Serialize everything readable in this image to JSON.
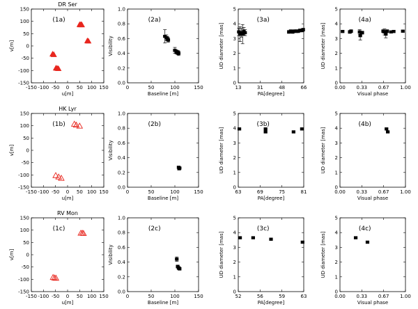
{
  "chart_data": [
    {
      "id": "1a",
      "type": "scatter",
      "panel_label": "(1a)",
      "title": "DR Ser",
      "xlabel": "u[m]",
      "ylabel": "v[m]",
      "xlim": [
        -150,
        150
      ],
      "ylim": [
        -150,
        150
      ],
      "xticks": [
        "-150",
        "-100",
        "-50",
        "0",
        "50",
        "100",
        "150"
      ],
      "yticks": [
        "-150",
        "-100",
        "-50",
        "0",
        "50",
        "100",
        "150"
      ],
      "marker": "filled-triangle",
      "color": "#e8261e",
      "points": [
        [
          50,
          87
        ],
        [
          56,
          87
        ],
        [
          53,
          86
        ],
        [
          59,
          86
        ],
        [
          82,
          21
        ],
        [
          86,
          20
        ],
        [
          -62,
          -33
        ],
        [
          -57,
          -35
        ],
        [
          -48,
          -90
        ],
        [
          -43,
          -91
        ],
        [
          -38,
          -92
        ]
      ]
    },
    {
      "id": "2a",
      "type": "scatter",
      "panel_label": "(2a)",
      "title": "",
      "xlabel": "Baseline [m]",
      "ylabel": "Visibility",
      "xlim": [
        0,
        150
      ],
      "ylim": [
        0,
        1.0
      ],
      "xticks": [
        "0",
        "50",
        "100",
        "150"
      ],
      "yticks": [
        "0.0",
        "0.2",
        "0.4",
        "0.6",
        "0.8",
        "1.0"
      ],
      "marker": "filled-square",
      "color": "#000000",
      "points": [
        [
          79,
          0.63,
          0.09
        ],
        [
          82,
          0.61,
          0.04
        ],
        [
          84,
          0.6,
          0.03
        ],
        [
          86,
          0.58,
          0.03
        ],
        [
          100,
          0.44,
          0.04
        ],
        [
          103,
          0.42,
          0.03
        ],
        [
          106,
          0.41,
          0.03
        ],
        [
          108,
          0.4,
          0.03
        ]
      ]
    },
    {
      "id": "3a",
      "type": "scatter",
      "panel_label": "(3a)",
      "title": "",
      "xlabel": "PA[degree]",
      "ylabel": "UD diameter [mas]",
      "xlim": [
        13,
        66
      ],
      "ylim": [
        0,
        5
      ],
      "xticks": [
        "13",
        "31",
        "48",
        "66"
      ],
      "yticks": [
        "0",
        "1",
        "2",
        "3",
        "4",
        "5"
      ],
      "marker": "filled-square",
      "color": "#000000",
      "points": [
        [
          13.5,
          3.45,
          0.25
        ],
        [
          14.5,
          3.3,
          0.5
        ],
        [
          15.5,
          3.4,
          0.3
        ],
        [
          16.5,
          3.3,
          0.65
        ],
        [
          17.5,
          3.5,
          0.25
        ],
        [
          18.5,
          3.4,
          0.2
        ],
        [
          54,
          3.45,
          0.1
        ],
        [
          55.5,
          3.5,
          0.1
        ],
        [
          57,
          3.45,
          0.1
        ],
        [
          58.5,
          3.5,
          0.1
        ],
        [
          60,
          3.5,
          0.1
        ],
        [
          61.5,
          3.5,
          0.1
        ],
        [
          63,
          3.55,
          0.1
        ],
        [
          64.5,
          3.55,
          0.1
        ],
        [
          65.5,
          3.6,
          0.1
        ]
      ]
    },
    {
      "id": "4a",
      "type": "scatter",
      "panel_label": "(4a)",
      "title": "",
      "xlabel": "Visual phase",
      "ylabel": "UD diameter [mas]",
      "xlim": [
        0,
        1
      ],
      "ylim": [
        0,
        5
      ],
      "xticks": [
        "0.00",
        "0.33",
        "0.67",
        "1.00"
      ],
      "yticks": [
        "0",
        "1",
        "2",
        "3",
        "4",
        "5"
      ],
      "marker": "filled-square",
      "color": "#000000",
      "points": [
        [
          0.04,
          3.48,
          0.06
        ],
        [
          0.15,
          3.45,
          0.1
        ],
        [
          0.17,
          3.5,
          0.1
        ],
        [
          0.3,
          3.45,
          0.15
        ],
        [
          0.31,
          3.2,
          0.3
        ],
        [
          0.34,
          3.4,
          0.1
        ],
        [
          0.66,
          3.5,
          0.1
        ],
        [
          0.68,
          3.45,
          0.2
        ],
        [
          0.7,
          3.3,
          0.25
        ],
        [
          0.72,
          3.5,
          0.1
        ],
        [
          0.78,
          3.45,
          0.06
        ],
        [
          0.82,
          3.48,
          0.06
        ],
        [
          0.96,
          3.5,
          0.06
        ]
      ]
    },
    {
      "id": "1b",
      "type": "scatter",
      "panel_label": "(1b)",
      "title": "HK Lyr",
      "xlabel": "u[m]",
      "ylabel": "v[m]",
      "xlim": [
        -150,
        150
      ],
      "ylim": [
        -150,
        150
      ],
      "xticks": [
        "-150",
        "-100",
        "-50",
        "0",
        "50",
        "100",
        "150"
      ],
      "yticks": [
        "-150",
        "-100",
        "-50",
        "0",
        "50",
        "100",
        "150"
      ],
      "marker": "open-triangle",
      "color": "#e8261e",
      "points": [
        [
          28,
          107
        ],
        [
          36,
          103
        ],
        [
          50,
          99
        ],
        [
          -49,
          -102
        ],
        [
          -37,
          -108
        ],
        [
          -26,
          -113
        ]
      ]
    },
    {
      "id": "2b",
      "type": "scatter",
      "panel_label": "(2b)",
      "title": "",
      "xlabel": "Baseline [m]",
      "ylabel": "Visibility",
      "xlim": [
        0,
        150
      ],
      "ylim": [
        0,
        1.0
      ],
      "xticks": [
        "0",
        "50",
        "100",
        "150"
      ],
      "yticks": [
        "0.0",
        "0.2",
        "0.4",
        "0.6",
        "0.8",
        "1.0"
      ],
      "marker": "filled-square",
      "color": "#000000",
      "points": [
        [
          108,
          0.27,
          0.01
        ],
        [
          110,
          0.26,
          0.01
        ],
        [
          109,
          0.25,
          0.01
        ]
      ]
    },
    {
      "id": "3b",
      "type": "scatter",
      "panel_label": "(3b)",
      "title": "",
      "xlabel": "PA[degree]",
      "ylabel": "UD diameter [mas]",
      "xlim": [
        63,
        81
      ],
      "ylim": [
        0,
        5
      ],
      "xticks": [
        "63",
        "69",
        "75",
        "81"
      ],
      "yticks": [
        "0",
        "1",
        "2",
        "3",
        "4",
        "5"
      ],
      "marker": "filled-square",
      "color": "#000000",
      "points": [
        [
          63.3,
          3.95,
          0.05
        ],
        [
          70.5,
          3.95,
          0.05
        ],
        [
          70.5,
          3.75,
          0.05
        ],
        [
          78.2,
          3.75,
          0.05
        ],
        [
          80.5,
          3.95,
          0.05
        ]
      ]
    },
    {
      "id": "4b",
      "type": "scatter",
      "panel_label": "(4b)",
      "title": "",
      "xlabel": "Visual phase",
      "ylabel": "UD diameter [mas]",
      "xlim": [
        0,
        1
      ],
      "ylim": [
        0,
        5
      ],
      "xticks": [
        "0.00",
        "0.33",
        "0.67",
        "1.00"
      ],
      "yticks": [
        "0",
        "1",
        "2",
        "3",
        "4",
        "5"
      ],
      "marker": "filled-square",
      "color": "#000000",
      "points": [
        [
          0.71,
          3.95,
          0.05
        ],
        [
          0.73,
          3.75,
          0.05
        ]
      ]
    },
    {
      "id": "1c",
      "type": "scatter",
      "panel_label": "(1c)",
      "title": "RV Mon",
      "xlabel": "u[m]",
      "ylabel": "v[m]",
      "xlim": [
        -150,
        150
      ],
      "ylim": [
        -150,
        150
      ],
      "xticks": [
        "-150",
        "-100",
        "-50",
        "0",
        "50",
        "100",
        "150"
      ],
      "yticks": [
        "-150",
        "-100",
        "-50",
        "0",
        "50",
        "100",
        "150"
      ],
      "marker": "open-triangle",
      "color": "#e8261e",
      "points": [
        [
          55,
          88
        ],
        [
          61,
          88
        ],
        [
          66,
          87
        ],
        [
          -60,
          -92
        ],
        [
          -54,
          -94
        ],
        [
          -48,
          -95
        ]
      ]
    },
    {
      "id": "2c",
      "type": "scatter",
      "panel_label": "(2c)",
      "title": "",
      "xlabel": "Baseline [m]",
      "ylabel": "Visibility",
      "xlim": [
        0,
        150
      ],
      "ylim": [
        0,
        1.0
      ],
      "xticks": [
        "0",
        "50",
        "100",
        "150"
      ],
      "yticks": [
        "0.0",
        "0.2",
        "0.4",
        "0.6",
        "0.8",
        "1.0"
      ],
      "marker": "filled-square",
      "color": "#000000",
      "points": [
        [
          104,
          0.44,
          0.03
        ],
        [
          106,
          0.34,
          0.02
        ],
        [
          108,
          0.32,
          0.02
        ],
        [
          110,
          0.31,
          0.02
        ]
      ]
    },
    {
      "id": "3c",
      "type": "scatter",
      "panel_label": "(3c)",
      "title": "",
      "xlabel": "PA[degree]",
      "ylabel": "UD diameter [mas]",
      "xlim": [
        52,
        63
      ],
      "ylim": [
        0,
        5
      ],
      "xticks": [
        "52",
        "56",
        "59",
        "63"
      ],
      "yticks": [
        "0",
        "1",
        "2",
        "3",
        "4",
        "5"
      ],
      "marker": "filled-square",
      "color": "#000000",
      "points": [
        [
          52.3,
          3.65,
          0.05
        ],
        [
          54.5,
          3.65,
          0.05
        ],
        [
          57.5,
          3.55,
          0.05
        ],
        [
          62.8,
          3.35,
          0.08
        ]
      ]
    },
    {
      "id": "4c",
      "type": "scatter",
      "panel_label": "(4c)",
      "title": "",
      "xlabel": "Visual phase",
      "ylabel": "UD diameter [mas]",
      "xlim": [
        0,
        1
      ],
      "ylim": [
        0,
        5
      ],
      "xticks": [
        "0.00",
        "0.33",
        "0.67",
        "1.00"
      ],
      "yticks": [
        "0",
        "1",
        "2",
        "3",
        "4",
        "5"
      ],
      "marker": "filled-square",
      "color": "#000000",
      "points": [
        [
          0.24,
          3.65,
          0.05
        ],
        [
          0.42,
          3.35,
          0.08
        ]
      ]
    }
  ]
}
